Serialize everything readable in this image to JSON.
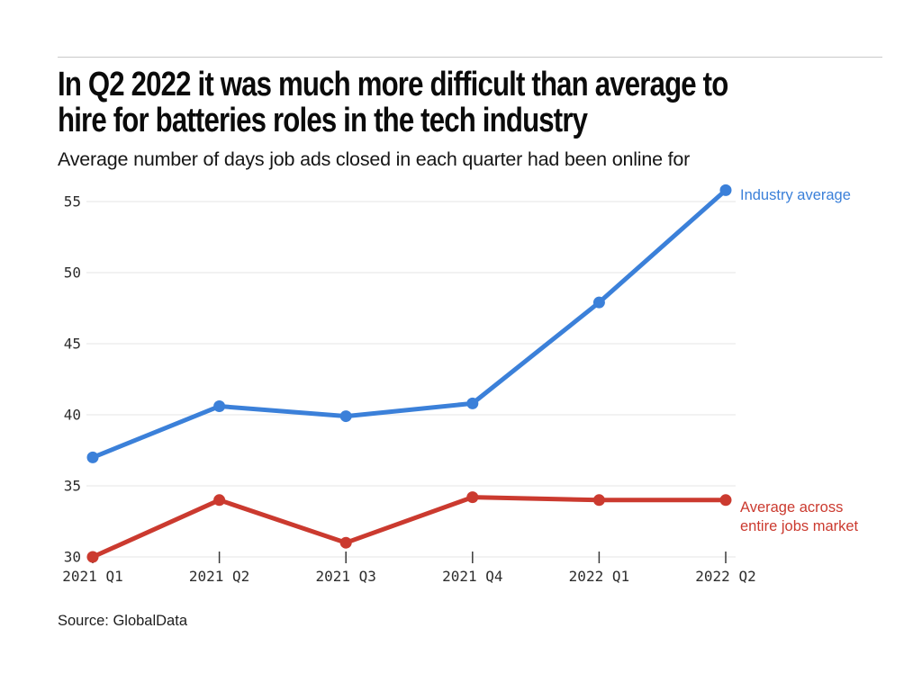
{
  "page": {
    "title_lines": [
      "In Q2 2022 it was much more difficult than average to",
      "hire for batteries roles in the tech industry"
    ],
    "subtitle": "Average number of days job ads closed in each quarter had been online for",
    "source": "Source: GlobalData"
  },
  "colors": {
    "industry": "#3b80d9",
    "market": "#cb3a2f",
    "grid": "#e9e9e9",
    "axis": "#e9e9e9",
    "tick": "#3a3a3a",
    "tick_label": "#2d2d2d",
    "title": "#0b0b0b",
    "divider": "#c9c9c9"
  },
  "chart_data": {
    "type": "line",
    "title": "In Q2 2022 it was much more difficult than average to hire for batteries roles in the tech industry",
    "subtitle": "Average number of days job ads closed in each quarter had been online for",
    "categories": [
      "2021 Q1",
      "2021 Q2",
      "2021 Q3",
      "2021 Q4",
      "2022 Q1",
      "2022 Q2"
    ],
    "series": [
      {
        "name": "Industry average",
        "color_key": "industry",
        "values": [
          37.0,
          40.6,
          39.9,
          40.8,
          47.9,
          55.8
        ],
        "label_lines": [
          "Industry average"
        ]
      },
      {
        "name": "Average across entire jobs market",
        "color_key": "market",
        "values": [
          30.0,
          34.0,
          31.0,
          34.2,
          34.0,
          34.0
        ],
        "label_lines": [
          "Average across",
          "entire jobs market"
        ]
      }
    ],
    "xlabel": "",
    "ylabel": "",
    "ylim": [
      30,
      56
    ],
    "yticks": [
      30,
      35,
      40,
      45,
      50,
      55
    ],
    "grid": "horizontal",
    "legend_position": "right-of-line-end",
    "source": "Source: GlobalData"
  }
}
